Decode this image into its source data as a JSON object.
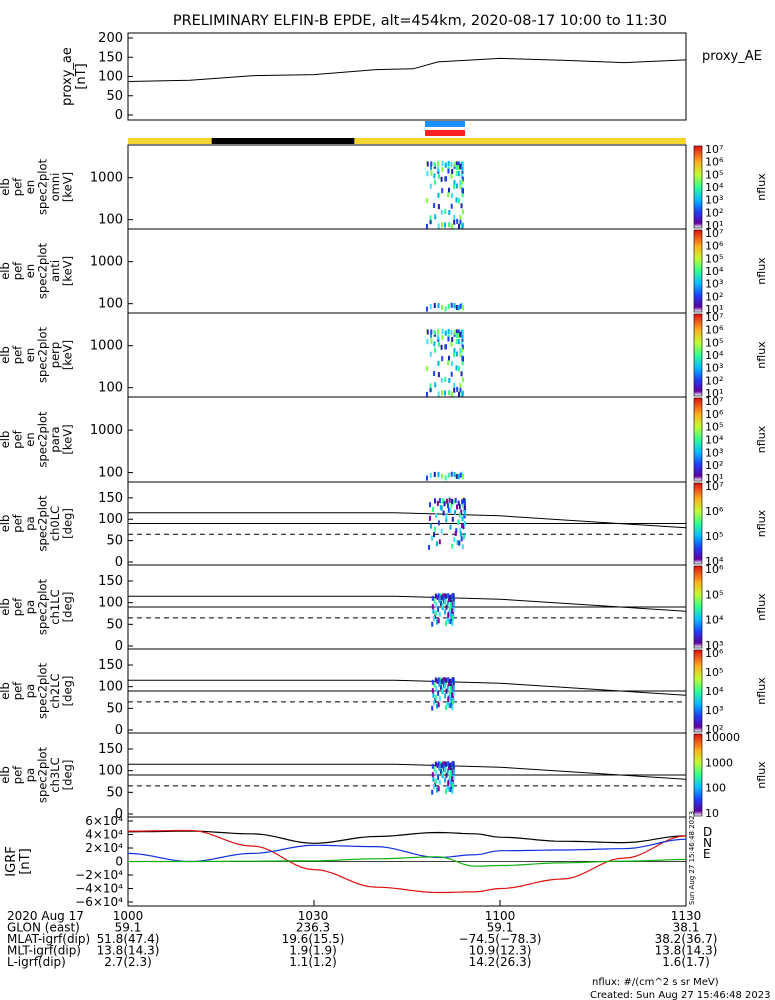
{
  "title": "PRELIMINARY ELFIN-B EPDE, alt=454km, 2020-08-17 10:00 to 11:30",
  "status_bar_colors": {
    "day": "#f5d530",
    "shadow": "#000000",
    "sci_blue": "#1e90ff",
    "sci_red": "#ff2020"
  },
  "panels": [
    {
      "id": "proxy_ae",
      "ylabel": [
        "proxy_ae",
        "[nT]"
      ],
      "right_label": "proxy_AE",
      "yticks": [
        "0",
        "50",
        "100",
        "150",
        "200"
      ]
    },
    {
      "id": "omni",
      "ylabel": [
        "elb",
        "pef",
        "en",
        "spec2plot",
        "omni",
        "[keV]"
      ],
      "yticks": [
        "100",
        "1000"
      ],
      "colorbar_ticks": [
        "10¹",
        "10²",
        "10³",
        "10⁴",
        "10⁵",
        "10⁶",
        "10⁷"
      ],
      "colorbar_label": "nflux"
    },
    {
      "id": "anti",
      "ylabel": [
        "elb",
        "pef",
        "en",
        "spec2plot",
        "anti",
        "[keV]"
      ],
      "yticks": [
        "100",
        "1000"
      ],
      "colorbar_ticks": [
        "10¹",
        "10²",
        "10³",
        "10⁴",
        "10⁵",
        "10⁶",
        "10⁷"
      ],
      "colorbar_label": "nflux"
    },
    {
      "id": "perp",
      "ylabel": [
        "elb",
        "pef",
        "en",
        "spec2plot",
        "perp",
        "[keV]"
      ],
      "yticks": [
        "100",
        "1000"
      ],
      "colorbar_ticks": [
        "10¹",
        "10²",
        "10³",
        "10⁴",
        "10⁵",
        "10⁶",
        "10⁷"
      ],
      "colorbar_label": "nflux"
    },
    {
      "id": "para",
      "ylabel": [
        "elb",
        "pef",
        "en",
        "spec2plot",
        "para",
        "[keV]"
      ],
      "yticks": [
        "100",
        "1000"
      ],
      "colorbar_ticks": [
        "10¹",
        "10²",
        "10³",
        "10⁴",
        "10⁵",
        "10⁶",
        "10⁷"
      ],
      "colorbar_label": "nflux"
    },
    {
      "id": "ch0LC",
      "ylabel": [
        "elb",
        "pef",
        "pa",
        "spec2plot",
        "ch0LC",
        "[deg]"
      ],
      "yticks": [
        "0",
        "50",
        "100",
        "150"
      ],
      "colorbar_ticks": [
        "10⁴",
        "10⁵",
        "10⁶",
        "10⁷"
      ],
      "colorbar_label": "nflux"
    },
    {
      "id": "ch1LC",
      "ylabel": [
        "elb",
        "pef",
        "pa",
        "spec2plot",
        "ch1LC",
        "[deg]"
      ],
      "yticks": [
        "0",
        "50",
        "100",
        "150"
      ],
      "colorbar_ticks": [
        "10³",
        "10⁴",
        "10⁵",
        "10⁶"
      ],
      "colorbar_label": "nflux"
    },
    {
      "id": "ch2LC",
      "ylabel": [
        "elb",
        "pef",
        "pa",
        "spec2plot",
        "ch2LC",
        "[deg]"
      ],
      "yticks": [
        "0",
        "50",
        "100",
        "150"
      ],
      "colorbar_ticks": [
        "10²",
        "10³",
        "10⁴",
        "10⁵",
        "10⁶"
      ],
      "colorbar_label": "nflux"
    },
    {
      "id": "ch3LC",
      "ylabel": [
        "elb",
        "pef",
        "pa",
        "spec2plot",
        "ch3LC",
        "[deg]"
      ],
      "yticks": [
        "0",
        "50",
        "100",
        "150"
      ],
      "colorbar_ticks": [
        "10",
        "100",
        "1000",
        "10000"
      ],
      "colorbar_label": "nflux"
    },
    {
      "id": "igrf",
      "ylabel": [
        "IGRF",
        "[nT]"
      ],
      "yticks": [
        "−6×10⁴",
        "−4×10⁴",
        "−2×10⁴",
        "0",
        "2×10⁴",
        "4×10⁴",
        "6×10⁴"
      ],
      "right_labels": [
        "D",
        "N",
        "E"
      ],
      "right_label_colors": [
        "#e01010",
        "#1030e0",
        "#10b010"
      ],
      "side_stamp": "Sun Aug 27 15:46:48 2023"
    }
  ],
  "chart_data": [
    {
      "type": "line",
      "title": "",
      "ylabel": "proxy_ae [nT]",
      "ylim": [
        0,
        200
      ],
      "x_minutes": [
        0,
        10,
        20,
        30,
        40,
        46,
        50,
        60,
        70,
        80,
        90
      ],
      "series": [
        {
          "name": "proxy_AE",
          "values": [
            87,
            90,
            102,
            105,
            118,
            120,
            138,
            147,
            142,
            136,
            143
          ]
        }
      ]
    },
    {
      "type": "line",
      "title": "",
      "ylabel": "IGRF [nT]",
      "ylim": [
        -60000,
        60000
      ],
      "x_minutes": [
        0,
        10,
        20,
        30,
        40,
        50,
        56,
        60,
        70,
        80,
        90
      ],
      "series": [
        {
          "name": "total",
          "color": "#000000",
          "values": [
            44000,
            45000,
            41000,
            27000,
            37000,
            43000,
            41000,
            36000,
            30000,
            28000,
            38000
          ]
        },
        {
          "name": "D",
          "color": "#e01010",
          "values": [
            45000,
            46000,
            23000,
            -12000,
            -38000,
            -46000,
            -45000,
            -40000,
            -26000,
            5000,
            38000
          ]
        },
        {
          "name": "N",
          "color": "#1030e0",
          "values": [
            12000,
            0,
            12000,
            24000,
            22000,
            6000,
            10000,
            16000,
            17000,
            19000,
            33000
          ]
        },
        {
          "name": "E",
          "color": "#10b010",
          "values": [
            0,
            0,
            500,
            1000,
            4000,
            7000,
            -7000,
            -6000,
            -2000,
            500,
            3000
          ]
        }
      ]
    }
  ],
  "time_axis": {
    "ticks": [
      "1000",
      "1030",
      "1100",
      "1130"
    ]
  },
  "footer_rows": [
    {
      "label": "2020 Aug 17",
      "values": [
        "1000",
        "1030",
        "1100",
        "1130"
      ]
    },
    {
      "label": "GLON (east)",
      "values": [
        "59.1",
        "236.3",
        "59.1",
        "38.1"
      ]
    },
    {
      "label": "MLAT-igrf(dip)",
      "values": [
        "51.8(47.4)",
        "19.6(15.5)",
        "−74.5(−78.3)",
        "38.2(36.7)"
      ]
    },
    {
      "label": "MLT-igrf(dip)",
      "values": [
        "13.8(14.3)",
        "1.9(1.9)",
        "10.9(12.3)",
        "13.8(14.3)"
      ]
    },
    {
      "label": "L-igrf(dip)",
      "values": [
        "2.7(2.3)",
        "1.1(1.2)",
        "14.2(26.3)",
        "1.6(1.7)"
      ]
    }
  ],
  "footnote": "nflux: #/(cm^2 s sr MeV)",
  "created": "Created: Sun Aug 27 15:46:48 2023"
}
